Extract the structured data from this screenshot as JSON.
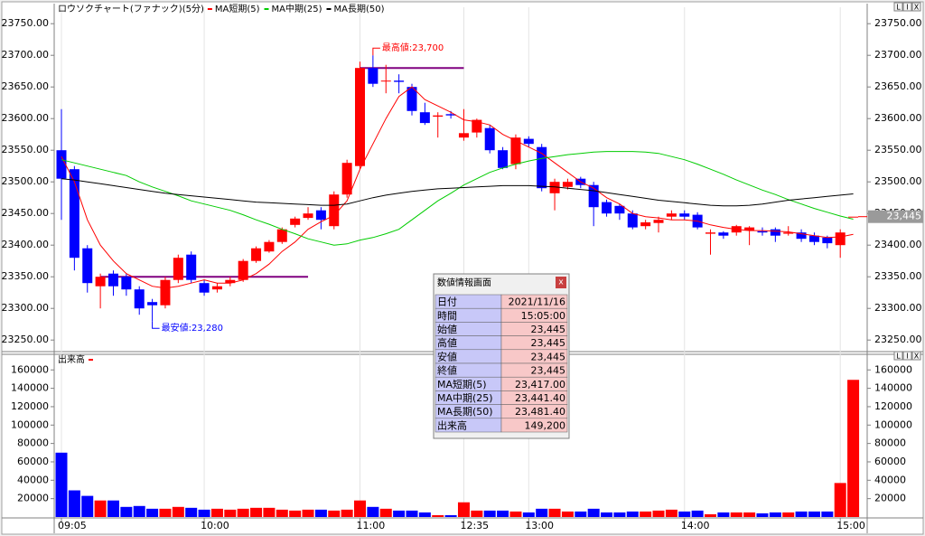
{
  "chart_data": [
    {
      "type": "candlestick",
      "title": "ロウソクチャート(ファナック)(5分)",
      "categories": [
        "09:05",
        null,
        null,
        null,
        null,
        null,
        null,
        null,
        null,
        null,
        null,
        "10:00",
        null,
        null,
        null,
        null,
        null,
        null,
        null,
        null,
        null,
        null,
        null,
        "11:00",
        null,
        null,
        null,
        null,
        null,
        null,
        null,
        "12:35",
        null,
        null,
        null,
        null,
        "13:00",
        null,
        null,
        null,
        null,
        null,
        null,
        null,
        null,
        null,
        null,
        null,
        "14:00",
        null,
        null,
        null,
        null,
        null,
        null,
        null,
        null,
        null,
        null,
        null,
        "15:00",
        null
      ],
      "open": [
        23550,
        23520,
        23395,
        23335,
        23355,
        23350,
        23330,
        23310,
        23305,
        23345,
        23385,
        23340,
        23330,
        23340,
        23345,
        23375,
        23390,
        23405,
        23432,
        23443,
        23455,
        23430,
        23480,
        23525,
        23680,
        23660,
        23660,
        23650,
        23610,
        23603,
        23607,
        23570,
        23578,
        23585,
        23550,
        23528,
        23568,
        23555,
        23482,
        23492,
        23505,
        23495,
        23468,
        23462,
        23450,
        23430,
        23435,
        23445,
        23450,
        23448,
        23418,
        23420,
        23420,
        23423,
        23422,
        23425,
        23418,
        23420,
        23415,
        23412,
        23400,
        23445
      ],
      "high": [
        23615,
        23525,
        23400,
        23355,
        23360,
        23355,
        23335,
        23315,
        23350,
        23385,
        23390,
        23345,
        23340,
        23350,
        23378,
        23398,
        23408,
        23428,
        23445,
        23460,
        23460,
        23485,
        23535,
        23690,
        23700,
        23685,
        23670,
        23655,
        23625,
        23610,
        23612,
        23615,
        23600,
        23590,
        23555,
        23575,
        23572,
        23560,
        23505,
        23505,
        23508,
        23500,
        23472,
        23465,
        23455,
        23440,
        23445,
        23455,
        23455,
        23452,
        23425,
        23422,
        23432,
        23430,
        23428,
        23428,
        23430,
        23425,
        23420,
        23415,
        23425,
        23445
      ],
      "low": [
        23440,
        23360,
        23325,
        23300,
        23320,
        23320,
        23290,
        23280,
        23300,
        23340,
        23340,
        23320,
        23325,
        23335,
        23342,
        23372,
        23388,
        23402,
        23428,
        23440,
        23425,
        23425,
        23475,
        23520,
        23650,
        23640,
        23640,
        23605,
        23590,
        23570,
        23600,
        23565,
        23570,
        23545,
        23520,
        23520,
        23555,
        23485,
        23455,
        23488,
        23490,
        23430,
        23445,
        23440,
        23425,
        23425,
        23420,
        23440,
        23440,
        23425,
        23385,
        23410,
        23415,
        23400,
        23415,
        23405,
        23415,
        23405,
        23400,
        23395,
        23380,
        23445
      ],
      "close": [
        23505,
        23380,
        23340,
        23350,
        23335,
        23330,
        23300,
        23305,
        23345,
        23380,
        23345,
        23325,
        23335,
        23345,
        23375,
        23395,
        23405,
        23425,
        23442,
        23450,
        23440,
        23480,
        23530,
        23680,
        23655,
        23660,
        23658,
        23612,
        23593,
        23605,
        23605,
        23577,
        23598,
        23550,
        23522,
        23570,
        23560,
        23490,
        23500,
        23500,
        23495,
        23460,
        23450,
        23450,
        23428,
        23436,
        23440,
        23450,
        23445,
        23428,
        23420,
        23415,
        23430,
        23428,
        23420,
        23415,
        23420,
        23410,
        23405,
        23403,
        23420,
        23445
      ],
      "up_color": "#ff0000",
      "down_color": "#0000ff",
      "series": [
        {
          "name": "MA短期(5)",
          "color": "#ff0000",
          "values": [
            23540,
            23500,
            23440,
            23400,
            23375,
            23355,
            23345,
            23335,
            23332,
            23335,
            23340,
            23345,
            23340,
            23340,
            23345,
            23355,
            23370,
            23390,
            23405,
            23425,
            23437,
            23447,
            23470,
            23520,
            23560,
            23600,
            23635,
            23650,
            23630,
            23620,
            23610,
            23598,
            23595,
            23590,
            23575,
            23565,
            23555,
            23545,
            23530,
            23515,
            23500,
            23490,
            23475,
            23465,
            23450,
            23445,
            23443,
            23440,
            23440,
            23438,
            23432,
            23428,
            23425,
            23423,
            23423,
            23422,
            23421,
            23418,
            23415,
            23412,
            23413,
            23417
          ]
        },
        {
          "name": "MA中期(25)",
          "color": "#00cc00",
          "values": [
            23535,
            23530,
            23525,
            23520,
            23515,
            23510,
            23500,
            23492,
            23485,
            23478,
            23470,
            23465,
            23460,
            23455,
            23448,
            23440,
            23433,
            23425,
            23418,
            23410,
            23405,
            23400,
            23402,
            23408,
            23412,
            23418,
            23425,
            23440,
            23455,
            23470,
            23482,
            23495,
            23505,
            23515,
            23522,
            23528,
            23533,
            23537,
            23540,
            23543,
            23545,
            23547,
            23548,
            23548,
            23548,
            23547,
            23545,
            23540,
            23535,
            23528,
            23520,
            23512,
            23503,
            23495,
            23487,
            23480,
            23472,
            23465,
            23458,
            23452,
            23446,
            23441
          ]
        },
        {
          "name": "MA長期(50)",
          "color": "#000000",
          "values": [
            23505,
            23503,
            23500,
            23497,
            23494,
            23491,
            23488,
            23485,
            23482,
            23480,
            23478,
            23476,
            23474,
            23472,
            23470,
            23468,
            23467,
            23466,
            23465,
            23464,
            23463,
            23463,
            23465,
            23470,
            23475,
            23479,
            23482,
            23485,
            23487,
            23489,
            23490,
            23491,
            23492,
            23493,
            23494,
            23494,
            23494,
            23493,
            23492,
            23490,
            23488,
            23486,
            23483,
            23480,
            23477,
            23474,
            23471,
            23469,
            23467,
            23465,
            23463,
            23462,
            23462,
            23463,
            23465,
            23468,
            23471,
            23473,
            23475,
            23477,
            23479,
            23481
          ]
        }
      ],
      "reference_lines": [
        {
          "value": 23680,
          "x": [
            23,
            31
          ],
          "color": "#800080"
        },
        {
          "value": 23350,
          "x": [
            3,
            19
          ],
          "color": "#800080"
        }
      ],
      "annotations": [
        {
          "text": "最高値:23,700",
          "value": 23700,
          "x": 24,
          "color": "#ff0000"
        },
        {
          "text": "最安値:23,280",
          "value": 23280,
          "x": 7,
          "color": "#0000ff"
        }
      ],
      "last": {
        "value": 23445,
        "label": "23,445"
      },
      "ylim": [
        23236,
        23776
      ],
      "yticks": [
        {
          "value": 23250,
          "label": "23250.00"
        },
        {
          "value": 23300,
          "label": "23300.00"
        },
        {
          "value": 23350,
          "label": "23350.00"
        },
        {
          "value": 23400,
          "label": "23400.00"
        },
        {
          "value": 23450,
          "label": "23450.00"
        },
        {
          "value": 23500,
          "label": "23500.00"
        },
        {
          "value": 23550,
          "label": "23550.00"
        },
        {
          "value": 23600,
          "label": "23600.00"
        },
        {
          "value": 23650,
          "label": "23650.00"
        },
        {
          "value": 23700,
          "label": "23700.00"
        },
        {
          "value": 23750,
          "label": "23750.00"
        }
      ],
      "panel_buttons": [
        "L",
        "I",
        "X"
      ]
    },
    {
      "type": "bar",
      "series": [
        {
          "name": "出来高",
          "color": "#ff0000",
          "values": [
            70000,
            29000,
            23000,
            18000,
            18000,
            11000,
            12000,
            9000,
            9000,
            11000,
            10000,
            8000,
            9000,
            8000,
            9000,
            10000,
            10000,
            8000,
            7000,
            8000,
            8000,
            7000,
            8000,
            18000,
            11000,
            9000,
            7000,
            7000,
            5000,
            2000,
            2000,
            16000,
            7000,
            7000,
            7000,
            6000,
            5000,
            9000,
            9000,
            6000,
            6000,
            9000,
            5000,
            5000,
            6000,
            6000,
            7000,
            8000,
            6000,
            7000,
            3000,
            5000,
            5000,
            5000,
            4000,
            5000,
            5000,
            6000,
            6000,
            6000,
            37000,
            149200
          ]
        }
      ],
      "ylim": [
        0,
        175000
      ],
      "yticks": [
        20000,
        40000,
        60000,
        80000,
        100000,
        120000,
        140000,
        160000
      ],
      "panel_buttons": [
        "L",
        "I",
        "X"
      ]
    }
  ],
  "info_panel": {
    "title": "数値情報画面",
    "close": "x",
    "rows": [
      [
        "日付",
        "2021/11/16"
      ],
      [
        "時間",
        "15:05:00"
      ],
      [
        "始値",
        "23,445"
      ],
      [
        "高値",
        "23,445"
      ],
      [
        "安値",
        "23,445"
      ],
      [
        "終値",
        "23,445"
      ],
      [
        "MA短期(5)",
        "23,417.00"
      ],
      [
        "MA中期(25)",
        "23,441.40"
      ],
      [
        "MA長期(50)",
        "23,481.40"
      ],
      [
        "出来高",
        "149,200"
      ]
    ]
  }
}
